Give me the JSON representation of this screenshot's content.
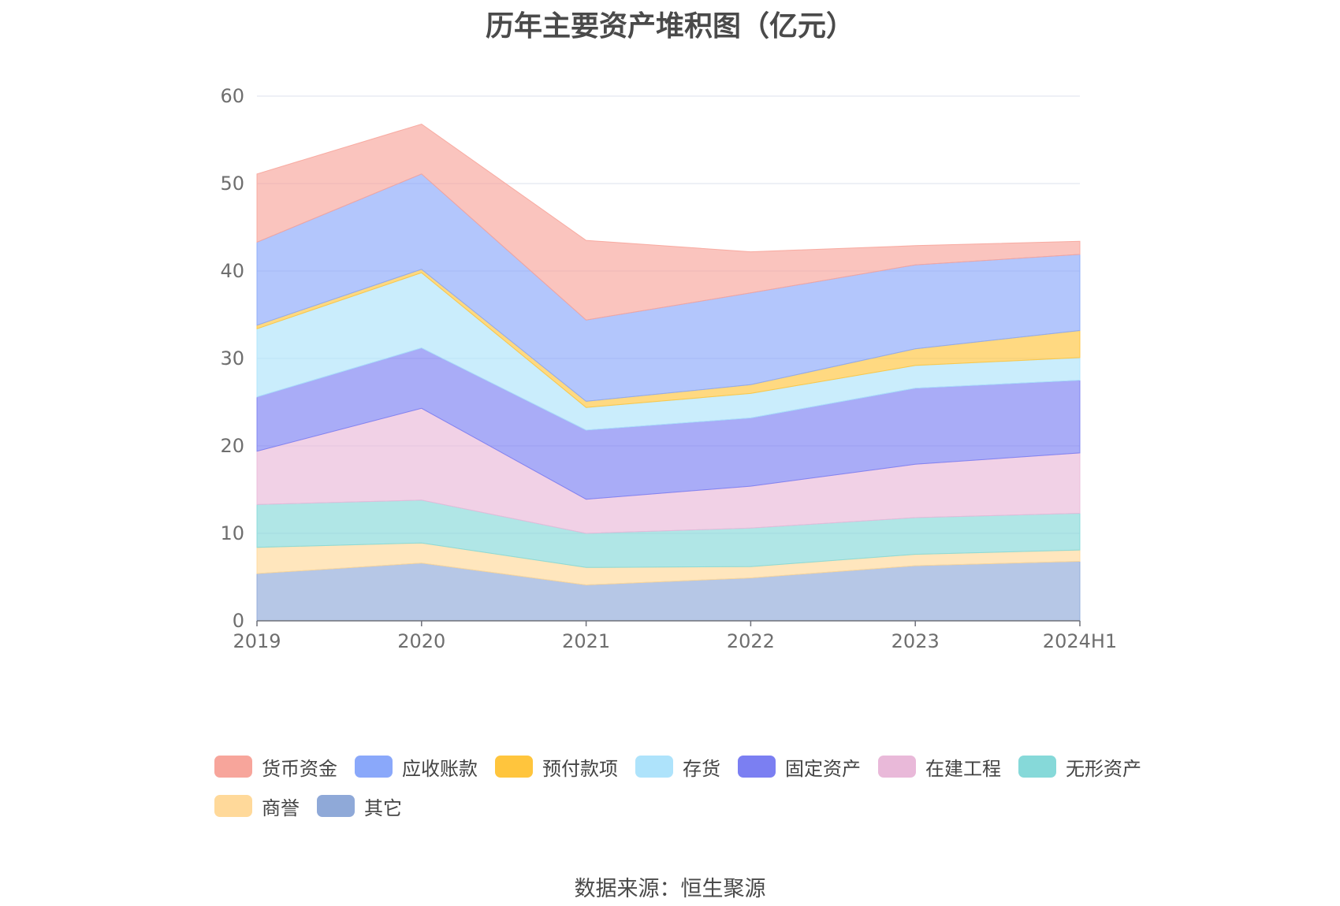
{
  "source_text": "数据来源：恒生聚源",
  "chart_data": {
    "type": "area",
    "stacked": true,
    "title": "历年主要资产堆积图（亿元）",
    "categories": [
      "2019",
      "2020",
      "2021",
      "2022",
      "2023",
      "2024H1"
    ],
    "ylim": [
      0,
      60
    ],
    "yticks": [
      0,
      10,
      20,
      30,
      40,
      50,
      60
    ],
    "grid": true,
    "legend_position": "bottom",
    "series": [
      {
        "name": "其它",
        "color": "#8fa9d8",
        "values": [
          5.4,
          6.6,
          4.1,
          4.9,
          6.3,
          6.8
        ]
      },
      {
        "name": "商誉",
        "color": "#ffd99a",
        "values": [
          3.0,
          2.3,
          2.0,
          1.3,
          1.3,
          1.3
        ]
      },
      {
        "name": "无形资产",
        "color": "#86d9d9",
        "values": [
          4.9,
          4.9,
          3.9,
          4.4,
          4.2,
          4.2
        ]
      },
      {
        "name": "在建工程",
        "color": "#e9b9d9",
        "values": [
          6.1,
          10.5,
          3.9,
          4.8,
          6.1,
          6.9
        ]
      },
      {
        "name": "固定资产",
        "color": "#7b7ff2",
        "values": [
          6.2,
          6.9,
          7.9,
          7.8,
          8.7,
          8.3
        ]
      },
      {
        "name": "存货",
        "color": "#aee3fb",
        "values": [
          7.8,
          8.6,
          2.6,
          2.8,
          2.6,
          2.6
        ]
      },
      {
        "name": "预付款项",
        "color": "#ffc53d",
        "values": [
          0.4,
          0.4,
          0.7,
          1.0,
          1.9,
          3.1
        ]
      },
      {
        "name": "应收账款",
        "color": "#8aa8fa",
        "values": [
          9.5,
          10.9,
          9.3,
          10.5,
          9.6,
          8.7
        ]
      },
      {
        "name": "货币资金",
        "color": "#f7a59b",
        "values": [
          7.8,
          5.7,
          9.1,
          4.7,
          2.2,
          1.5
        ]
      }
    ]
  },
  "legend_order": [
    "货币资金",
    "应收账款",
    "预付款项",
    "存货",
    "固定资产",
    "在建工程",
    "无形资产",
    "商誉",
    "其它"
  ]
}
